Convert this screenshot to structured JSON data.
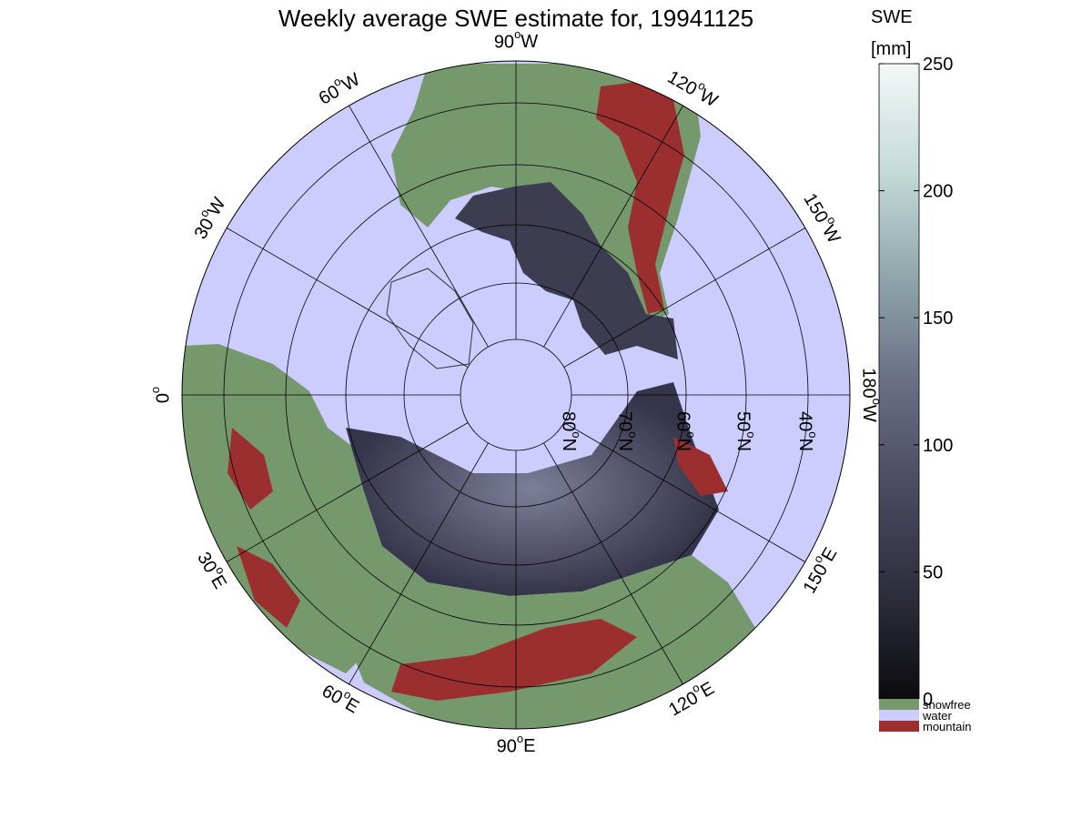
{
  "title": "Weekly average SWE estimate for, 19941125",
  "colorbar": {
    "label_line1": "SWE",
    "label_line2": "[mm]",
    "ticks": [
      "0",
      "50",
      "100",
      "150",
      "200",
      "250"
    ],
    "tick_values": [
      0,
      50,
      100,
      150,
      200,
      250
    ],
    "range": [
      0,
      250
    ],
    "colors": [
      "#0b0b0f",
      "#2b2b38",
      "#4a4a61",
      "#6a6f86",
      "#8ea5aa",
      "#c4dbd8",
      "#f4f8f7"
    ]
  },
  "categories": [
    {
      "label": "snowfree",
      "color": "#75996d"
    },
    {
      "label": "water",
      "color": "#ccccff"
    },
    {
      "label": "mountain",
      "color": "#9b2f2f"
    }
  ],
  "map": {
    "projection": "north polar stereographic",
    "ocean_color": "#ccccff",
    "longitude_labels": [
      {
        "text": "90°W",
        "base": "90",
        "unit": "W",
        "angle": 90
      },
      {
        "text": "120°W",
        "base": "120",
        "unit": "W",
        "angle": 60
      },
      {
        "text": "150°W",
        "base": "150",
        "unit": "W",
        "angle": 30
      },
      {
        "text": "180°W",
        "base": "180",
        "unit": "W",
        "angle": 0
      },
      {
        "text": "150°E",
        "base": "150",
        "unit": "E",
        "angle": -30
      },
      {
        "text": "120°E",
        "base": "120",
        "unit": "E",
        "angle": -60
      },
      {
        "text": "90°E",
        "base": "90",
        "unit": "E",
        "angle": -90
      },
      {
        "text": "60°E",
        "base": "60",
        "unit": "E",
        "angle": -120
      },
      {
        "text": "30°E",
        "base": "30",
        "unit": "E",
        "angle": -150
      },
      {
        "text": "0°",
        "base": "0",
        "unit": "",
        "angle": 180
      },
      {
        "text": "30°W",
        "base": "30",
        "unit": "W",
        "angle": 150
      },
      {
        "text": "60°W",
        "base": "60",
        "unit": "W",
        "angle": 120
      }
    ],
    "latitude_labels": [
      {
        "text": "80°N",
        "base": "80",
        "unit": "N"
      },
      {
        "text": "70°N",
        "base": "70",
        "unit": "N"
      },
      {
        "text": "60°N",
        "base": "60",
        "unit": "N"
      },
      {
        "text": "50°N",
        "base": "50",
        "unit": "N"
      },
      {
        "text": "40°N",
        "base": "40",
        "unit": "N"
      }
    ]
  }
}
